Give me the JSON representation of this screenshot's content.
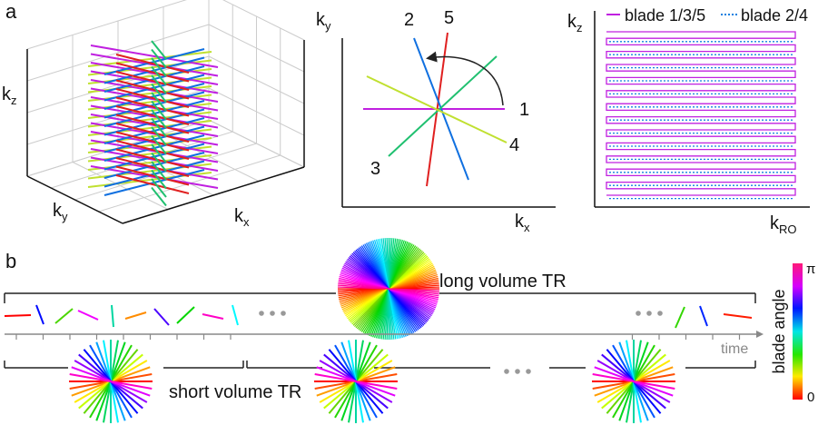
{
  "panel_a": {
    "label": "a",
    "axes_3d": {
      "kz": {
        "base": "k",
        "sub": "z"
      },
      "ky": {
        "base": "k",
        "sub": "y"
      },
      "kx": {
        "base": "k",
        "sub": "x"
      }
    },
    "blade_plot": {
      "ky": {
        "base": "k",
        "sub": "y"
      },
      "kx": {
        "base": "k",
        "sub": "x"
      },
      "blades": [
        "1",
        "2",
        "3",
        "4",
        "5"
      ]
    },
    "raster_plot": {
      "kz": {
        "base": "k",
        "sub": "z"
      },
      "kro": {
        "base": "k",
        "sub": "RO"
      },
      "legend": [
        "blade 1/3/5",
        "blade 2/4"
      ]
    }
  },
  "panel_b": {
    "label": "b",
    "long_tr": "long volume TR",
    "time": "time",
    "short_tr": "short volume TR",
    "colorbar": {
      "title": "blade angle",
      "max": "π",
      "min": "0"
    }
  }
}
